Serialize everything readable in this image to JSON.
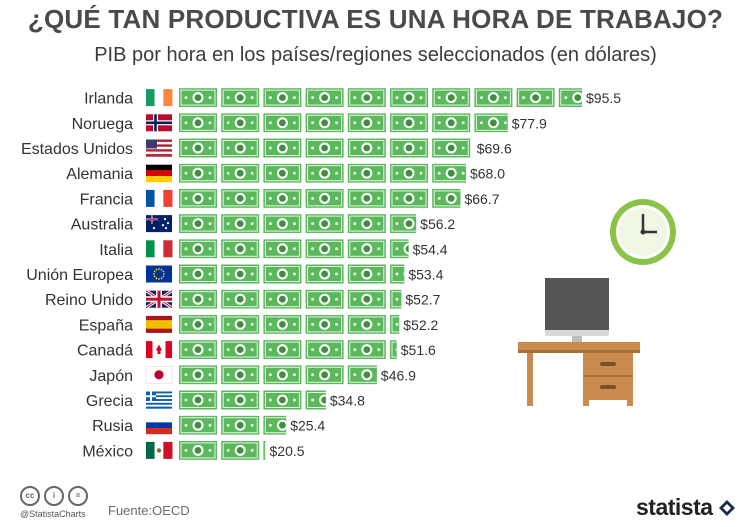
{
  "header": {
    "title": "¿QUÉ TAN PRODUCTIVA ES UNA HORA DE TRABAJO?",
    "subtitle": "PIB por hora en los países/regiones seleccionados (en dólares)"
  },
  "chart_data": {
    "type": "bar",
    "orientation": "horizontal",
    "unit_icon": "dollar-bill-icon",
    "categories": [
      "Irlanda",
      "Noruega",
      "Estados Unidos",
      "Alemania",
      "Francia",
      "Australia",
      "Italia",
      "Unión Europea",
      "Reino Unido",
      "España",
      "Canadá",
      "Japón",
      "Grecia",
      "Rusia",
      "México"
    ],
    "values": [
      95.5,
      77.9,
      69.6,
      68.0,
      66.7,
      56.2,
      54.4,
      53.4,
      52.7,
      52.2,
      51.6,
      46.9,
      34.8,
      25.4,
      20.5
    ],
    "value_labels": [
      "$95.5",
      "$77.9",
      "$69.6",
      "$68.0",
      "$66.7",
      "$56.2",
      "$54.4",
      "$53.4",
      "$52.7",
      "$52.2",
      "$51.6",
      "$46.9",
      "$34.8",
      "$25.4",
      "$20.5"
    ],
    "flags": [
      "flag-ireland-icon",
      "flag-norway-icon",
      "flag-usa-icon",
      "flag-germany-icon",
      "flag-france-icon",
      "flag-australia-icon",
      "flag-italy-icon",
      "flag-eu-icon",
      "flag-uk-icon",
      "flag-spain-icon",
      "flag-canada-icon",
      "flag-japan-icon",
      "flag-greece-icon",
      "flag-russia-icon",
      "flag-mexico-icon"
    ],
    "bar_color": "#5cb85c",
    "bar_dark": "#3f8f3f",
    "xlabel": "",
    "ylabel": "",
    "grid": false,
    "legend": "none"
  },
  "footer": {
    "handle": "@StatistaCharts",
    "source": "Fuente:OECD",
    "brand": "statista",
    "license_icons": [
      "cc-icon",
      "by-icon",
      "nd-icon"
    ]
  },
  "illustration": {
    "items": [
      "clock-icon",
      "computer-monitor-icon",
      "desk-icon"
    ],
    "colors": {
      "clock": "#8bc34a",
      "desk": "#c98b4e",
      "monitor": "#555555"
    }
  }
}
